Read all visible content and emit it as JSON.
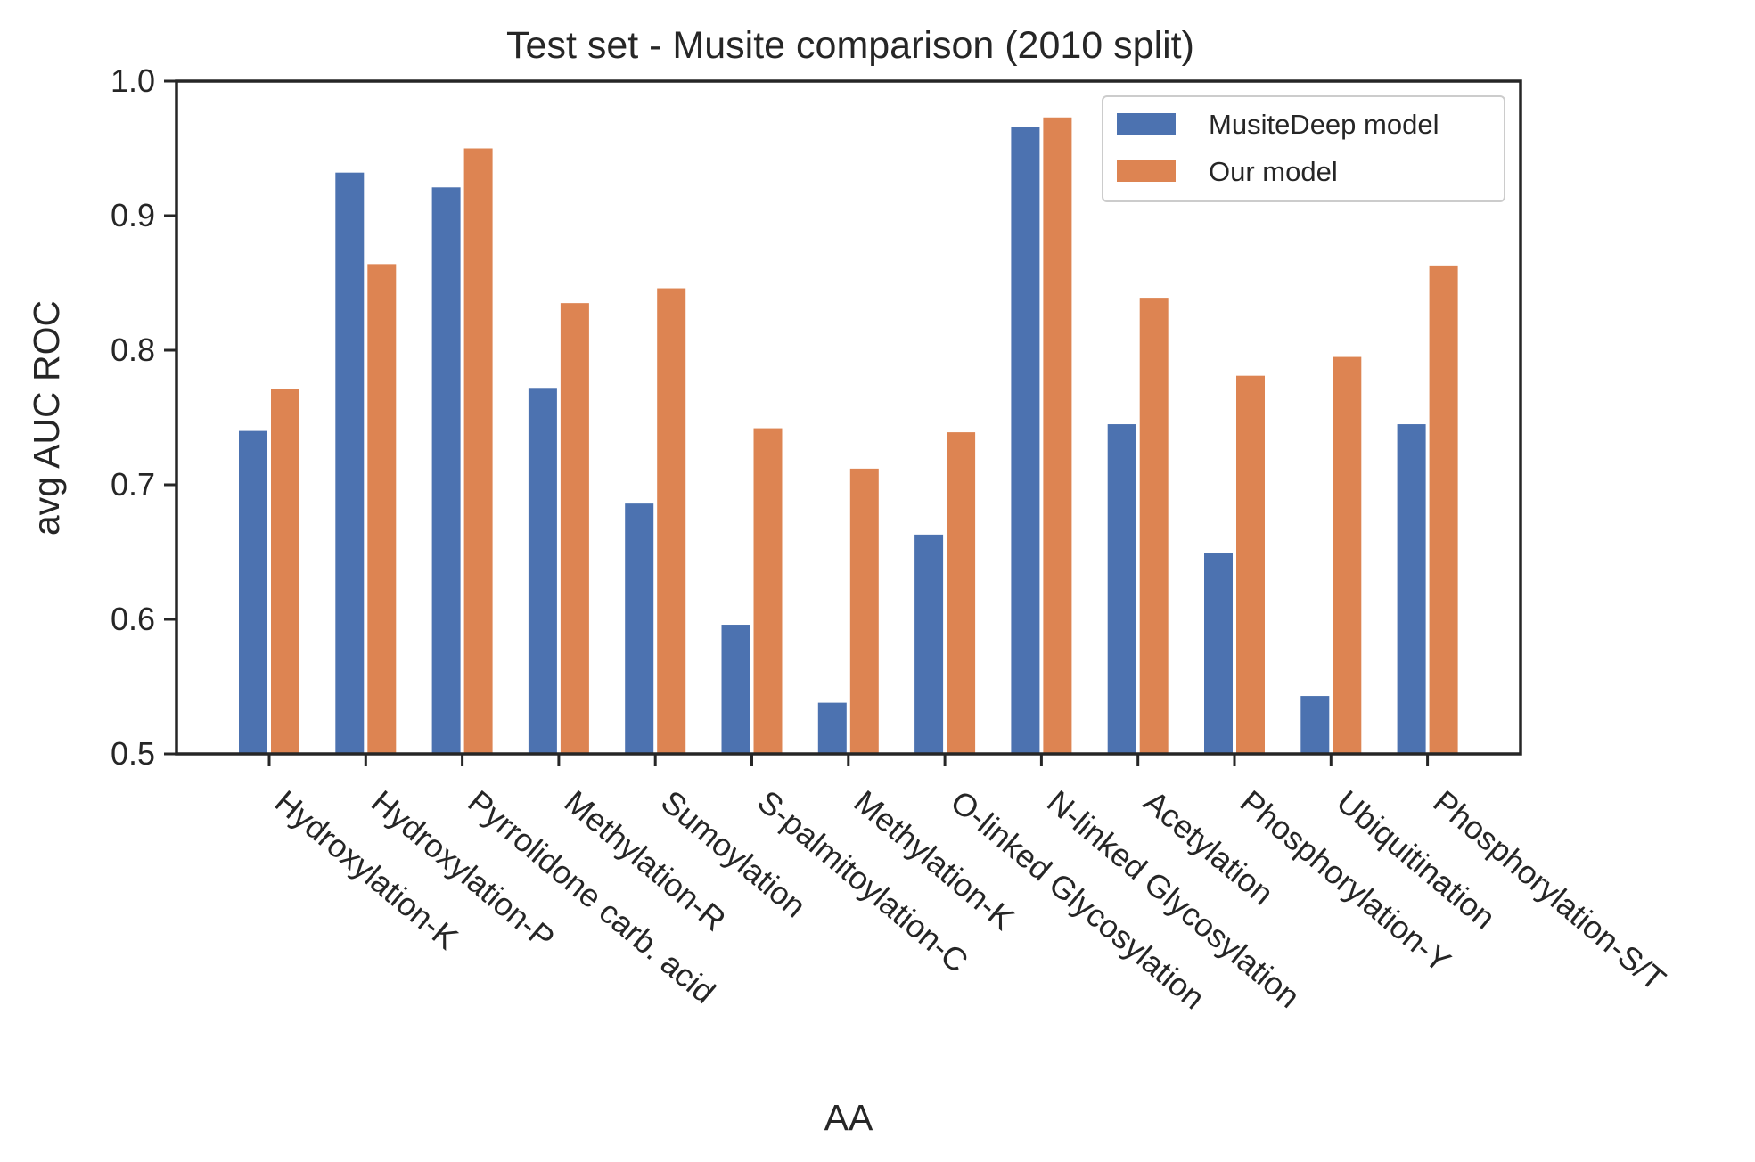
{
  "chart_data": {
    "type": "bar",
    "title": "Test set - Musite comparison (2010 split)",
    "xlabel": "AA",
    "ylabel": "avg AUC ROC",
    "ylim": [
      0.5,
      1.0
    ],
    "yticks": [
      "0.5",
      "0.6",
      "0.7",
      "0.8",
      "0.9",
      "1.0"
    ],
    "grid": false,
    "legend_position": "top-right",
    "categories": [
      "Hydroxylation-K",
      "Hydroxylation-P",
      "Pyrrolidone carb. acid",
      "Methylation-R",
      "Sumoylation",
      "S-palmitoylation-C",
      "Methylation-K",
      "O-linked Glycosylation",
      "N-linked Glycosylation",
      "Acetylation",
      "Phosphorylation-Y",
      "Ubiquitination",
      "Phosphorylation-S/T"
    ],
    "series": [
      {
        "name": "MusiteDeep model",
        "color": "#4c72b0",
        "values": [
          0.74,
          0.932,
          0.921,
          0.772,
          0.686,
          0.596,
          0.538,
          0.663,
          0.966,
          0.745,
          0.649,
          0.543,
          0.745
        ]
      },
      {
        "name": "Our model",
        "color": "#dd8452",
        "values": [
          0.771,
          0.864,
          0.95,
          0.835,
          0.846,
          0.742,
          0.712,
          0.739,
          0.973,
          0.839,
          0.781,
          0.795,
          0.863
        ]
      }
    ]
  }
}
